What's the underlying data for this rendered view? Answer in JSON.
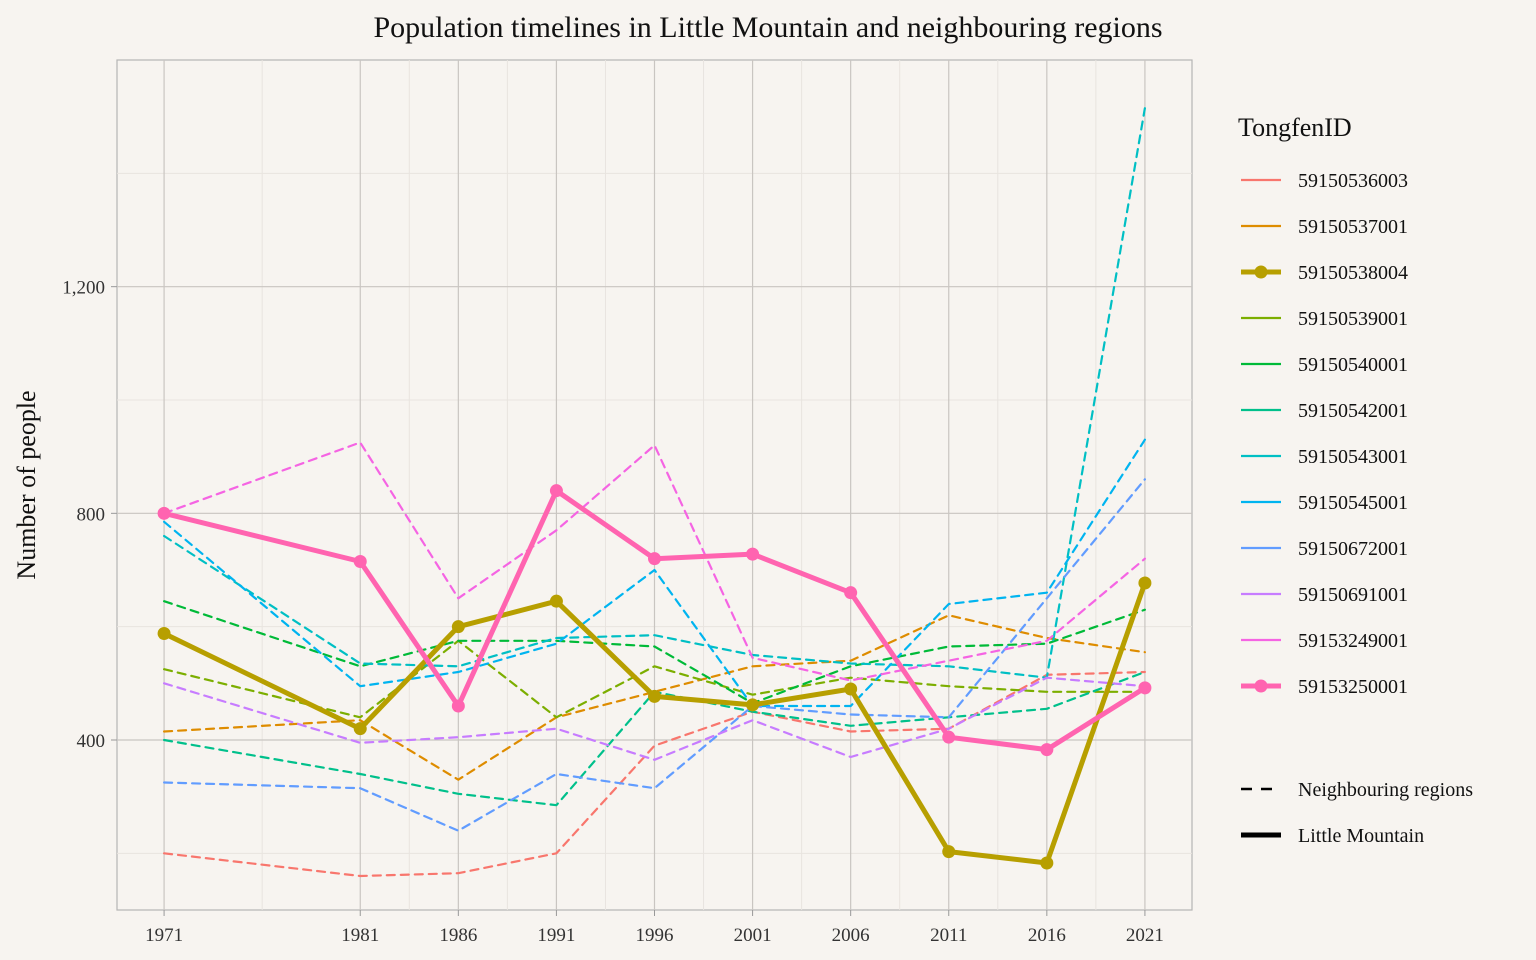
{
  "chart_data": {
    "type": "line",
    "title": "Population timelines in Little Mountain and neighbouring regions",
    "xlabel": "",
    "ylabel": "Number of people",
    "x": [
      1971,
      1981,
      1986,
      1991,
      1996,
      2001,
      2006,
      2011,
      2016,
      2021
    ],
    "x_ticks": [
      "1971",
      "1981",
      "1986",
      "1991",
      "1996",
      "2001",
      "2006",
      "2011",
      "2016",
      "2021"
    ],
    "xlim": [
      1968.6,
      2023.4
    ],
    "ylim": [
      100,
      1600
    ],
    "y_ticks": [
      400,
      800,
      1200
    ],
    "y_tick_labels": [
      "400",
      "800",
      "1,200"
    ],
    "grid": true,
    "legend_position": "right",
    "legend": {
      "title": "TongfenID",
      "style_items": [
        {
          "label": "Neighbouring regions",
          "style": "dashed"
        },
        {
          "label": "Little Mountain",
          "style": "solid"
        }
      ]
    },
    "series": [
      {
        "name": "59150536003",
        "color": "#F8766D",
        "style": "dashed",
        "values": [
          200,
          160,
          165,
          200,
          390,
          450,
          415,
          420,
          515,
          520
        ]
      },
      {
        "name": "59150537001",
        "color": "#DE8C00",
        "style": "dashed",
        "values": [
          415,
          435,
          330,
          440,
          485,
          530,
          540,
          620,
          580,
          555
        ]
      },
      {
        "name": "59150538004",
        "color": "#B79F00",
        "style": "solid",
        "values": [
          588,
          420,
          600,
          645,
          477,
          462,
          490,
          203,
          183,
          677
        ]
      },
      {
        "name": "59150539001",
        "color": "#7CAE00",
        "style": "dashed",
        "values": [
          525,
          440,
          575,
          440,
          530,
          480,
          510,
          495,
          485,
          485
        ]
      },
      {
        "name": "59150540001",
        "color": "#00BA38",
        "style": "dashed",
        "values": [
          645,
          530,
          575,
          575,
          565,
          465,
          530,
          565,
          570,
          630
        ]
      },
      {
        "name": "59150542001",
        "color": "#00C08B",
        "style": "dashed",
        "values": [
          400,
          340,
          305,
          285,
          485,
          450,
          425,
          440,
          455,
          520
        ]
      },
      {
        "name": "59150543001",
        "color": "#00BFC4",
        "style": "dashed",
        "values": [
          760,
          535,
          530,
          580,
          585,
          550,
          535,
          530,
          510,
          1515
        ]
      },
      {
        "name": "59150545001",
        "color": "#00B4F0",
        "style": "dashed",
        "values": [
          785,
          495,
          520,
          570,
          700,
          460,
          460,
          640,
          660,
          930
        ]
      },
      {
        "name": "59150672001",
        "color": "#619CFF",
        "style": "dashed",
        "values": [
          325,
          315,
          240,
          340,
          315,
          460,
          445,
          440,
          650,
          860
        ]
      },
      {
        "name": "59150691001",
        "color": "#C77CFF",
        "style": "dashed",
        "values": [
          500,
          395,
          405,
          420,
          365,
          435,
          370,
          420,
          510,
          495
        ]
      },
      {
        "name": "59153249001",
        "color": "#F564E3",
        "style": "dashed",
        "values": [
          800,
          925,
          650,
          770,
          920,
          545,
          505,
          540,
          575,
          720
        ]
      },
      {
        "name": "59153250001",
        "color": "#FF64B0",
        "style": "solid",
        "values": [
          800,
          715,
          460,
          840,
          720,
          728,
          660,
          405,
          383,
          492
        ]
      }
    ]
  }
}
